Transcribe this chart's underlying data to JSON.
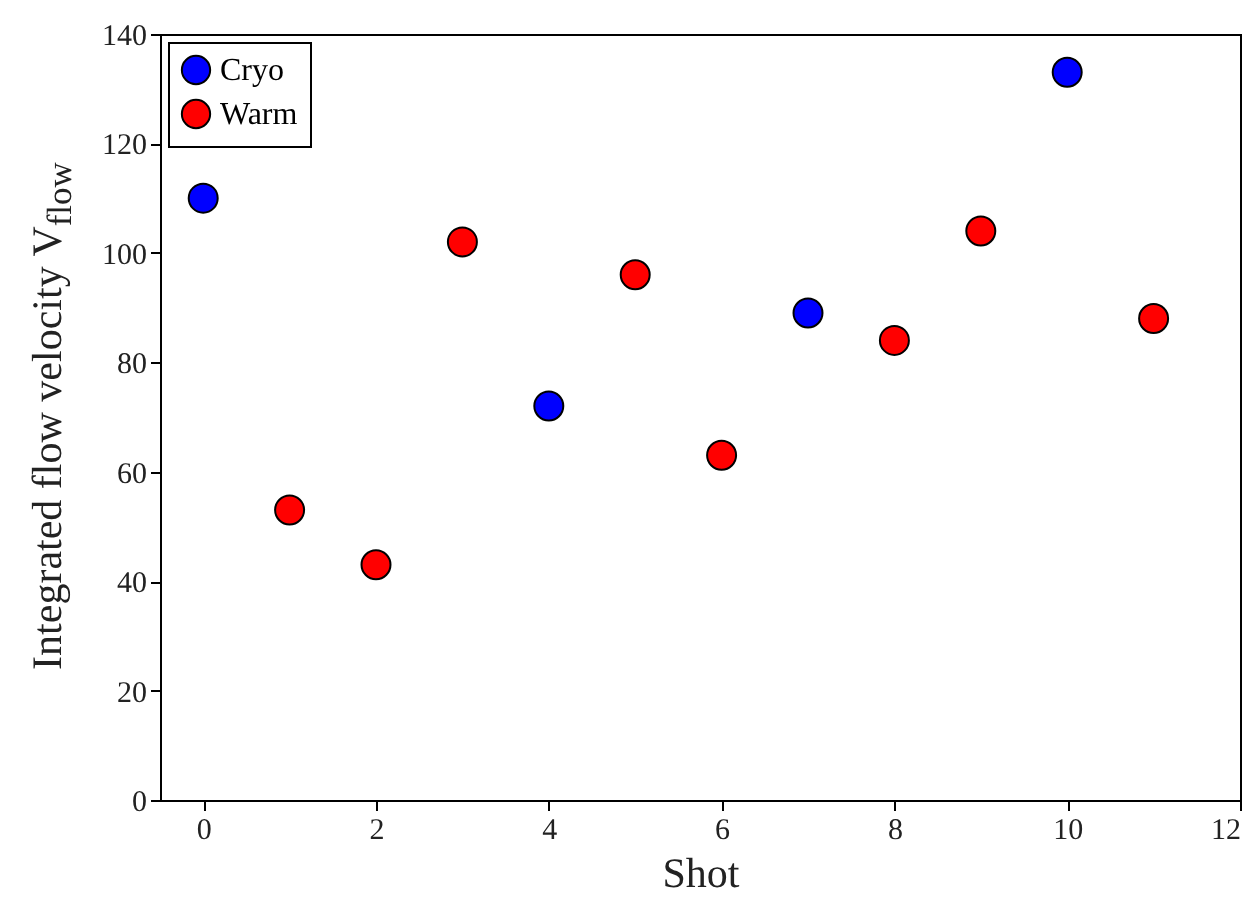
{
  "chart_data": {
    "type": "scatter",
    "xlabel": "Shot",
    "ylabel": "Integrated flow velocity V$_{flow}$",
    "series": [
      {
        "name": "Cryo",
        "color": "#0000ff",
        "x": [
          0,
          4,
          7,
          10
        ],
        "values": [
          110,
          72,
          89,
          133
        ]
      },
      {
        "name": "Warm",
        "color": "#ff0000",
        "x": [
          1,
          2,
          3,
          5,
          6,
          8,
          9,
          11
        ],
        "values": [
          53,
          43,
          102,
          96,
          63,
          84,
          104,
          88
        ]
      }
    ],
    "xlim": [
      -0.5,
      12
    ],
    "xticks": [
      0,
      2,
      4,
      6,
      8,
      10,
      12
    ],
    "ylim": [
      0,
      140
    ],
    "yticks": [
      0,
      20,
      40,
      60,
      80,
      100,
      120,
      140
    ],
    "grid": false,
    "legend": "top left",
    "marker": "circle"
  }
}
